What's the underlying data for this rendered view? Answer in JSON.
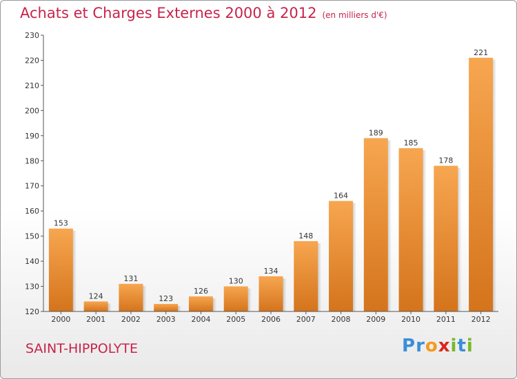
{
  "chart_data": {
    "type": "bar",
    "title": "Achats et Charges Externes 2000 à 2012",
    "subtitle": "(en milliers d'€)",
    "categories": [
      "2000",
      "2001",
      "2002",
      "2003",
      "2004",
      "2005",
      "2006",
      "2007",
      "2008",
      "2009",
      "2010",
      "2011",
      "2012"
    ],
    "values": [
      153,
      124,
      131,
      123,
      126,
      130,
      134,
      148,
      164,
      189,
      185,
      178,
      221
    ],
    "ylim": [
      120,
      230
    ],
    "yticks": [
      120,
      130,
      140,
      150,
      160,
      170,
      180,
      190,
      200,
      210,
      220,
      230
    ],
    "grid": false,
    "bar_color_top": "#f7a650",
    "bar_color_bottom": "#d4741c"
  },
  "footer": {
    "city": "SAINT-HIPPOLYTE",
    "logo_letters": [
      {
        "ch": "P",
        "color": "#3b8ed8"
      },
      {
        "ch": "r",
        "color": "#3b8ed8"
      },
      {
        "ch": "o",
        "color": "#f39a1e"
      },
      {
        "ch": "x",
        "color": "#d9261c"
      },
      {
        "ch": "i",
        "color": "#79b829"
      },
      {
        "ch": "t",
        "color": "#3b8ed8"
      },
      {
        "ch": "i",
        "color": "#79b829"
      }
    ]
  }
}
